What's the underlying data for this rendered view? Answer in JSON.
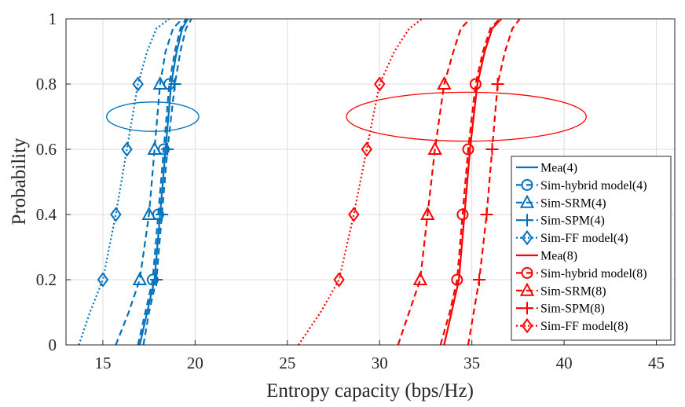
{
  "chart_data": {
    "type": "line",
    "title": "",
    "xlabel": "Entropy capacity (bps/Hz)",
    "ylabel": "Probability",
    "xlim": [
      13,
      46
    ],
    "ylim": [
      0,
      1
    ],
    "xticks": [
      15,
      20,
      25,
      30,
      35,
      40,
      45
    ],
    "yticks": [
      0,
      0.2,
      0.4,
      0.6,
      0.8,
      1
    ],
    "grid": true,
    "legend_position": "bottom-right",
    "colors": {
      "group4": "#0072BD",
      "group8": "#FF0000"
    },
    "series": [
      {
        "name": "Mea(4)",
        "group": "group4",
        "line": "solid",
        "marker": "none",
        "x": [
          17.0,
          17.4,
          17.8,
          18.1,
          18.4,
          18.7,
          19.0,
          19.3,
          19.6
        ],
        "y": [
          0,
          0.1,
          0.2,
          0.4,
          0.6,
          0.8,
          0.9,
          0.97,
          1
        ]
      },
      {
        "name": "Sim-hybrid model(4)",
        "group": "group4",
        "line": "dashed",
        "marker": "circle",
        "x": [
          16.9,
          17.3,
          17.7,
          18.0,
          18.3,
          18.6,
          18.9,
          19.2,
          19.5
        ],
        "y": [
          0,
          0.1,
          0.2,
          0.4,
          0.6,
          0.8,
          0.9,
          0.97,
          1
        ]
      },
      {
        "name": "Sim-SRM(4)",
        "group": "group4",
        "line": "dashed",
        "marker": "triangle",
        "x": [
          15.7,
          16.4,
          17.0,
          17.5,
          17.8,
          18.1,
          18.4,
          18.8,
          19.3
        ],
        "y": [
          0,
          0.1,
          0.2,
          0.4,
          0.6,
          0.8,
          0.9,
          0.97,
          1
        ]
      },
      {
        "name": "Sim-SPM(4)",
        "group": "group4",
        "line": "dashed",
        "marker": "plus",
        "x": [
          17.2,
          17.5,
          17.9,
          18.2,
          18.5,
          18.9,
          19.2,
          19.5,
          19.8
        ],
        "y": [
          0,
          0.1,
          0.2,
          0.4,
          0.6,
          0.8,
          0.9,
          0.97,
          1
        ]
      },
      {
        "name": "Sim-FF model(4)",
        "group": "group4",
        "line": "dotted",
        "marker": "diamond",
        "x": [
          13.7,
          14.3,
          15.0,
          15.7,
          16.3,
          16.9,
          17.4,
          17.9,
          18.6
        ],
        "y": [
          0,
          0.1,
          0.2,
          0.4,
          0.6,
          0.8,
          0.9,
          0.97,
          1
        ]
      },
      {
        "name": "Mea(8)",
        "group": "group8",
        "line": "solid",
        "marker": "none",
        "x": [
          33.5,
          33.9,
          34.3,
          34.6,
          34.9,
          35.3,
          35.7,
          36.1,
          36.6
        ],
        "y": [
          0,
          0.1,
          0.2,
          0.4,
          0.6,
          0.8,
          0.9,
          0.97,
          1
        ]
      },
      {
        "name": "Sim-hybrid model(8)",
        "group": "group8",
        "line": "dashed",
        "marker": "circle",
        "x": [
          33.3,
          33.8,
          34.2,
          34.5,
          34.8,
          35.2,
          35.6,
          36.0,
          36.5
        ],
        "y": [
          0,
          0.1,
          0.2,
          0.4,
          0.6,
          0.8,
          0.9,
          0.97,
          1
        ]
      },
      {
        "name": "Sim-SRM(8)",
        "group": "group8",
        "line": "dashed",
        "marker": "triangle",
        "x": [
          31.0,
          31.6,
          32.2,
          32.6,
          33.0,
          33.5,
          34.0,
          34.4,
          34.9
        ],
        "y": [
          0,
          0.1,
          0.2,
          0.4,
          0.6,
          0.8,
          0.9,
          0.97,
          1
        ]
      },
      {
        "name": "Sim-SPM(8)",
        "group": "group8",
        "line": "dashed",
        "marker": "plus",
        "x": [
          34.8,
          35.1,
          35.4,
          35.8,
          36.1,
          36.4,
          36.8,
          37.2,
          37.6
        ],
        "y": [
          0,
          0.1,
          0.2,
          0.4,
          0.6,
          0.8,
          0.9,
          0.97,
          1
        ]
      },
      {
        "name": "Sim-FF model(8)",
        "group": "group8",
        "line": "dotted",
        "marker": "diamond",
        "x": [
          25.6,
          26.8,
          27.8,
          28.6,
          29.3,
          30.0,
          30.8,
          31.6,
          32.3
        ],
        "y": [
          0,
          0.1,
          0.2,
          0.4,
          0.6,
          0.8,
          0.9,
          0.97,
          1
        ]
      }
    ],
    "marker_levels": [
      0.2,
      0.4,
      0.6,
      0.8
    ],
    "annotations": [
      {
        "type": "ellipse",
        "group": "group4",
        "center": [
          17.7,
          0.7
        ],
        "radii": [
          2.5,
          0.045
        ]
      },
      {
        "type": "ellipse",
        "group": "group8",
        "center": [
          34.7,
          0.7
        ],
        "radii": [
          6.5,
          0.075
        ]
      }
    ]
  }
}
